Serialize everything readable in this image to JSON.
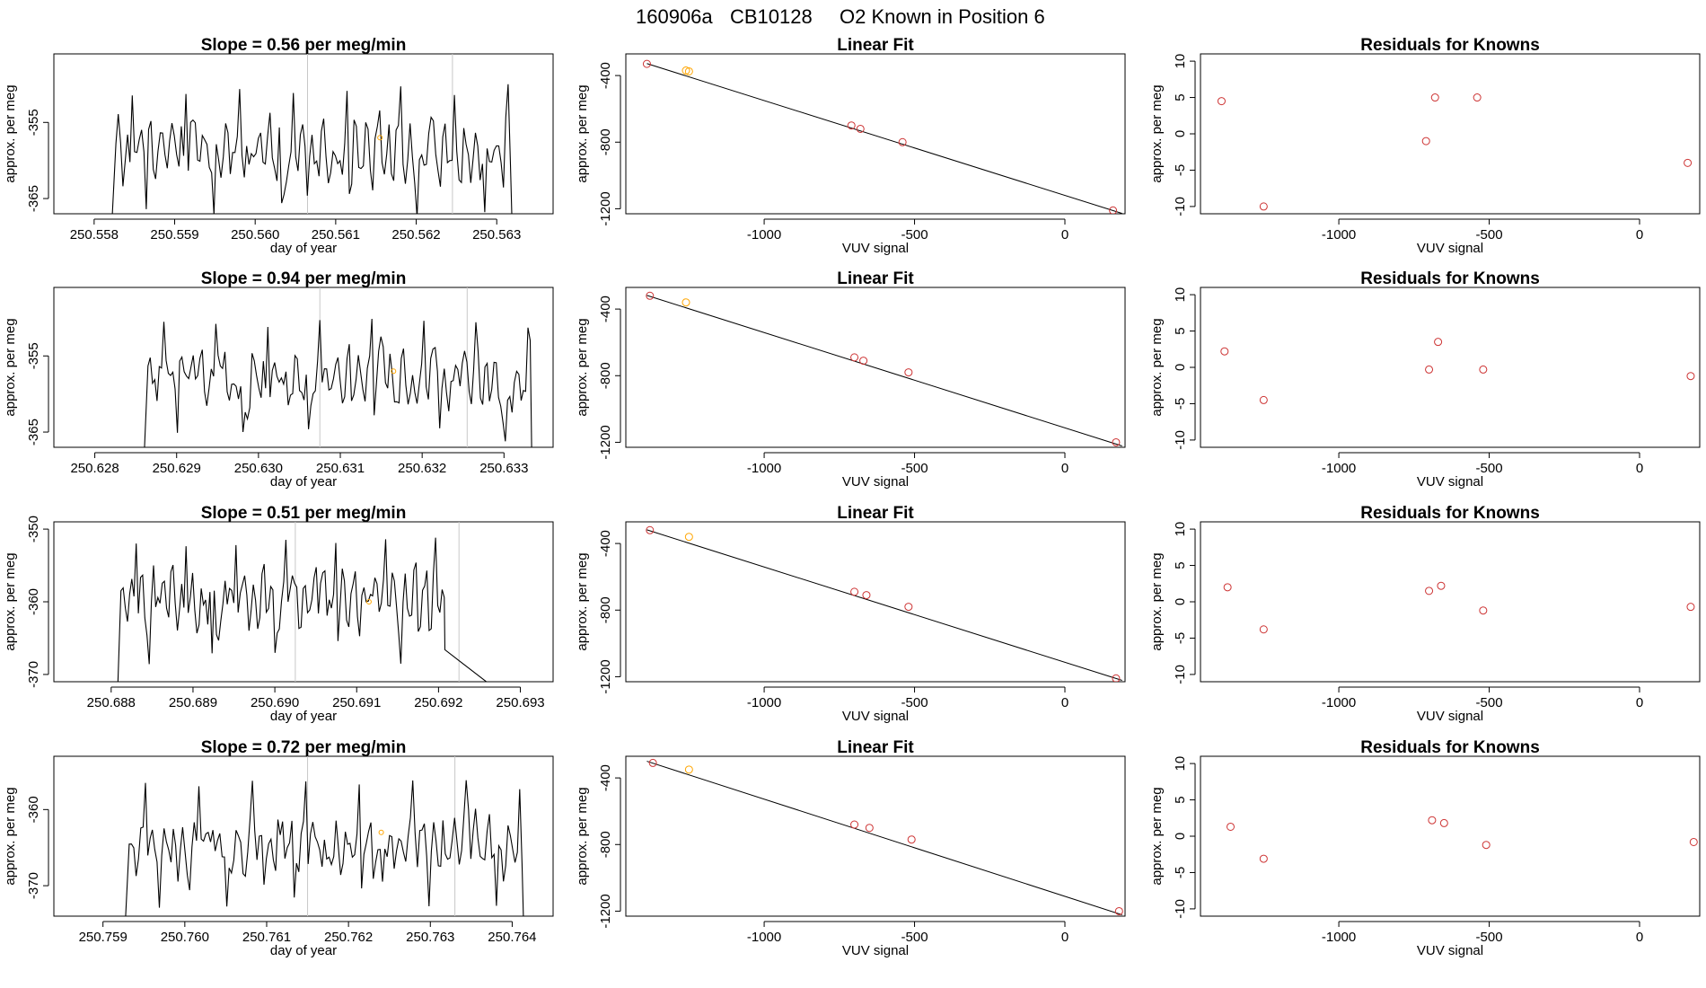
{
  "suptitle": {
    "run": "160906a",
    "tank": "CB10128",
    "desc": "O2 Known in Position  6"
  },
  "colors": {
    "trace": "#000000",
    "known_point": "#cd3333",
    "highlight_point": "#ffa500",
    "gridline": "#c8c8c8"
  },
  "chart_data": [
    {
      "type": "line",
      "row": 0,
      "title": "Slope =  0.56  per meg/min",
      "xlabel": "day of year",
      "ylabel": "approx. per meg",
      "xlim": [
        250.5575,
        250.5637
      ],
      "ylim": [
        -367,
        -346
      ],
      "xticks": [
        "250.558",
        "250.559",
        "250.560",
        "250.561",
        "250.562",
        "250.563"
      ],
      "yticks": [
        "-355",
        "-365"
      ],
      "ytick_values": [
        -355,
        -365
      ],
      "vlines": [
        250.56065,
        250.56245
      ],
      "start": 250.55827,
      "end": 250.56317,
      "n": 170,
      "base": -359,
      "amp": 5.5,
      "seed": 11,
      "pre_drop": -368,
      "post_drop": -368,
      "marker": {
        "x": 250.56155,
        "y": -357
      }
    },
    {
      "type": "scatter+fit",
      "row": 0,
      "title": "Linear Fit",
      "xlabel": "VUV signal",
      "ylabel": "approx. per meg",
      "xlim": [
        -1460,
        200
      ],
      "ylim": [
        -1230,
        -270
      ],
      "xticks": [
        -1000,
        -500,
        0
      ],
      "yticks": [
        -400,
        -800,
        -1200
      ],
      "x": [
        -1390,
        -1260,
        -1250,
        -710,
        -680,
        -540,
        160
      ],
      "y": [
        -330,
        -370,
        -375,
        -700,
        -720,
        -800,
        -1210
      ],
      "highlight": [
        1,
        2
      ],
      "fit": {
        "x": [
          -1390,
          190
        ],
        "y": [
          -328,
          -1228
        ]
      }
    },
    {
      "type": "scatter",
      "row": 0,
      "title": "Residuals for Knowns",
      "xlabel": "VUV signal",
      "ylabel": "approx. per meg",
      "xlim": [
        -1460,
        200
      ],
      "ylim": [
        -11,
        11
      ],
      "xticks": [
        -1000,
        -500,
        0
      ],
      "yticks": [
        10,
        5,
        0,
        -5,
        -10
      ],
      "x": [
        -1390,
        -1250,
        -710,
        -680,
        -540,
        160
      ],
      "y": [
        4.5,
        -10,
        -1,
        5,
        5,
        -4
      ]
    },
    {
      "type": "line",
      "row": 1,
      "title": "Slope =  0.94  per meg/min",
      "xlabel": "day of year",
      "ylabel": "approx. per meg",
      "xlim": [
        250.6275,
        250.6336
      ],
      "ylim": [
        -367,
        -346
      ],
      "xticks": [
        "250.628",
        "250.629",
        "250.630",
        "250.631",
        "250.632",
        "250.633"
      ],
      "yticks": [
        "-355",
        "-365"
      ],
      "ytick_values": [
        -355,
        -365
      ],
      "vlines": [
        250.63075,
        250.63255
      ],
      "start": 250.62865,
      "end": 250.63332,
      "n": 170,
      "base": -358,
      "amp": 5,
      "seed": 23,
      "pre_drop": -368,
      "post_drop": -368,
      "marker": {
        "x": 250.63165,
        "y": -357
      }
    },
    {
      "type": "scatter+fit",
      "row": 1,
      "title": "Linear Fit",
      "xlabel": "VUV signal",
      "ylabel": "approx. per meg",
      "xlim": [
        -1460,
        200
      ],
      "ylim": [
        -1230,
        -270
      ],
      "xticks": [
        -1000,
        -500,
        0
      ],
      "yticks": [
        -400,
        -800,
        -1200
      ],
      "x": [
        -1380,
        -1260,
        -700,
        -670,
        -520,
        170
      ],
      "y": [
        -320,
        -360,
        -690,
        -710,
        -780,
        -1200
      ],
      "highlight": [
        1
      ],
      "fit": {
        "x": [
          -1390,
          190
        ],
        "y": [
          -318,
          -1222
        ]
      }
    },
    {
      "type": "scatter",
      "row": 1,
      "title": "Residuals for Knowns",
      "xlabel": "VUV signal",
      "ylabel": "approx. per meg",
      "xlim": [
        -1460,
        200
      ],
      "ylim": [
        -11,
        11
      ],
      "xticks": [
        -1000,
        -500,
        0
      ],
      "yticks": [
        10,
        5,
        0,
        -5,
        -10
      ],
      "x": [
        -1380,
        -1250,
        -700,
        -670,
        -520,
        170
      ],
      "y": [
        2.2,
        -4.5,
        -0.3,
        3.5,
        -0.3,
        -1.2
      ]
    },
    {
      "type": "line",
      "row": 2,
      "title": "Slope =  0.51  per meg/min",
      "xlabel": "day of year",
      "ylabel": "approx. per meg",
      "xlim": [
        250.6873,
        250.6934
      ],
      "ylim": [
        -371,
        -349
      ],
      "xticks": [
        "250.688",
        "250.689",
        "250.690",
        "250.691",
        "250.692",
        "250.693"
      ],
      "yticks": [
        "-350",
        "-360",
        "-370"
      ],
      "ytick_values": [
        -350,
        -360,
        -370
      ],
      "vlines": [
        250.69025,
        250.69225
      ],
      "start": 250.68812,
      "end": 250.69207,
      "n": 150,
      "base": -360,
      "amp": 5.5,
      "seed": 37,
      "pre_drop": -372,
      "post_tail": {
        "x": 250.6927,
        "y": -372
      },
      "marker": {
        "x": 250.69115,
        "y": -360
      }
    },
    {
      "type": "scatter+fit",
      "row": 2,
      "title": "Linear Fit",
      "xlabel": "VUV signal",
      "ylabel": "approx. per meg",
      "xlim": [
        -1460,
        200
      ],
      "ylim": [
        -1230,
        -270
      ],
      "xticks": [
        -1000,
        -500,
        0
      ],
      "yticks": [
        -400,
        -800,
        -1200
      ],
      "x": [
        -1380,
        -1250,
        -700,
        -660,
        -520,
        170
      ],
      "y": [
        -320,
        -360,
        -690,
        -710,
        -780,
        -1210
      ],
      "highlight": [
        1
      ],
      "fit": {
        "x": [
          -1390,
          190
        ],
        "y": [
          -318,
          -1222
        ]
      }
    },
    {
      "type": "scatter",
      "row": 2,
      "title": "Residuals for Knowns",
      "xlabel": "VUV signal",
      "ylabel": "approx. per meg",
      "xlim": [
        -1460,
        200
      ],
      "ylim": [
        -11,
        11
      ],
      "xticks": [
        -1000,
        -500,
        0
      ],
      "yticks": [
        10,
        5,
        0,
        -5,
        -10
      ],
      "x": [
        -1370,
        -1250,
        -700,
        -660,
        -520,
        170
      ],
      "y": [
        2,
        -3.8,
        1.5,
        2.2,
        -1.2,
        -0.7
      ]
    },
    {
      "type": "line",
      "row": 3,
      "title": "Slope =  0.72  per meg/min",
      "xlabel": "day of year",
      "ylabel": "approx. per meg",
      "xlim": [
        250.7584,
        250.7645
      ],
      "ylim": [
        -374,
        -353
      ],
      "xticks": [
        "250.759",
        "250.760",
        "250.761",
        "250.762",
        "250.763",
        "250.764"
      ],
      "yticks": [
        "-360",
        "-370"
      ],
      "ytick_values": [
        -360,
        -370
      ],
      "vlines": [
        250.7615,
        250.7633
      ],
      "start": 250.75932,
      "end": 250.76412,
      "n": 170,
      "base": -365,
      "amp": 5.5,
      "seed": 53,
      "pre_drop": -375,
      "post_drop": -375,
      "marker": {
        "x": 250.7624,
        "y": -363
      }
    },
    {
      "type": "scatter+fit",
      "row": 3,
      "title": "Linear Fit",
      "xlabel": "VUV signal",
      "ylabel": "approx. per meg",
      "xlim": [
        -1460,
        200
      ],
      "ylim": [
        -1230,
        -270
      ],
      "xticks": [
        -1000,
        -500,
        0
      ],
      "yticks": [
        -400,
        -800,
        -1200
      ],
      "x": [
        -1370,
        -1250,
        -700,
        -650,
        -510,
        180
      ],
      "y": [
        -310,
        -350,
        -680,
        -700,
        -770,
        -1200
      ],
      "highlight": [
        1
      ],
      "fit": {
        "x": [
          -1390,
          190
        ],
        "y": [
          -300,
          -1222
        ]
      }
    },
    {
      "type": "scatter",
      "row": 3,
      "title": "Residuals for Knowns",
      "xlabel": "VUV signal",
      "ylabel": "approx. per meg",
      "xlim": [
        -1460,
        200
      ],
      "ylim": [
        -11,
        11
      ],
      "xticks": [
        -1000,
        -500,
        0
      ],
      "yticks": [
        10,
        5,
        0,
        -5,
        -10
      ],
      "x": [
        -1360,
        -1250,
        -690,
        -650,
        -510,
        180
      ],
      "y": [
        1.3,
        -3.1,
        2.2,
        1.8,
        -1.2,
        -0.8
      ]
    }
  ]
}
